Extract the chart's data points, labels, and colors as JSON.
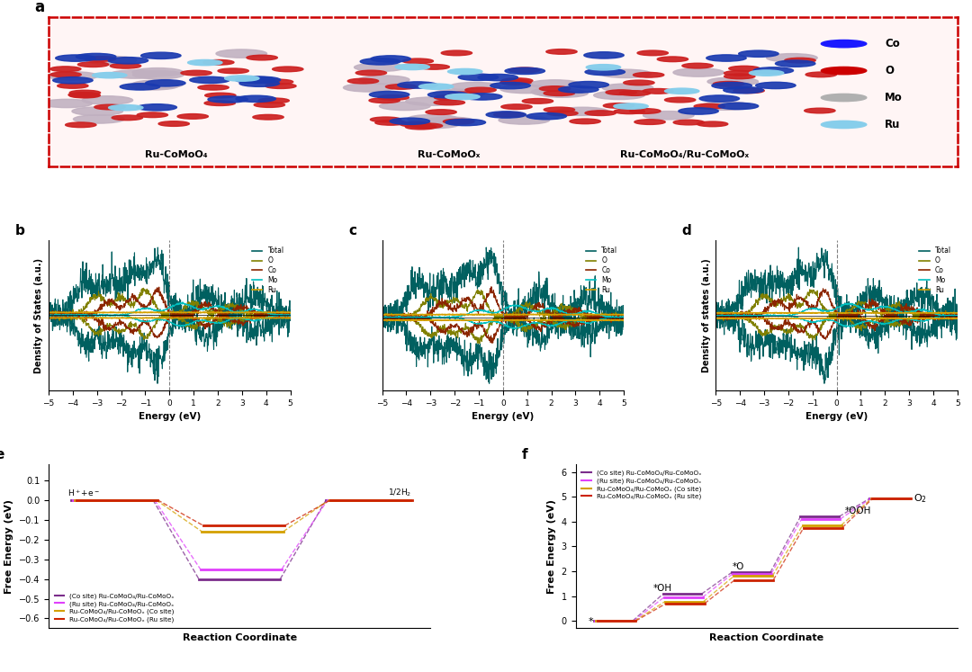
{
  "panel_a_bg": "#fff5f5",
  "panel_a_border": "#cc0000",
  "structure_labels": [
    "Ru-CoMoO₄",
    "Ru-CoMoOₓ",
    "Ru-CoMoO₄/Ru-CoMoOₓ"
  ],
  "legend_items": [
    {
      "label": "Co",
      "color": "#1a1aff"
    },
    {
      "label": "O",
      "color": "#cc0000"
    },
    {
      "label": "Mo",
      "color": "#b0b0b0"
    },
    {
      "label": "Ru",
      "color": "#87ceeb"
    }
  ],
  "dos_colors": {
    "Total": "#006060",
    "O": "#808000",
    "Co": "#8b2500",
    "Mo": "#00bfbf",
    "Ru": "#d4a000"
  },
  "dos_legend_order": [
    "Total",
    "O",
    "Co",
    "Mo",
    "Ru"
  ],
  "panel_e_colors": [
    "#7b2d8b",
    "#e040fb",
    "#d4a000",
    "#cc2200"
  ],
  "panel_e_labels": [
    "(Co site) Ru-CoMoO₄/Ru-CoMoOₓ",
    "(Ru site) Ru-CoMoO₄/Ru-CoMoOₓ",
    "Ru-CoMoO₄/Ru-CoMoOₓ (Co site)",
    "Ru-CoMoO₄/Ru-CoMoOₓ (Ru site)"
  ],
  "panel_e_minima": [
    -0.4,
    -0.35,
    -0.16,
    -0.13
  ],
  "panel_f_colors": [
    "#7b2d8b",
    "#e040fb",
    "#d4a000",
    "#cc2200"
  ],
  "panel_f_labels": [
    "(Co site) Ru-CoMoO₄/Ru-CoMoOₓ",
    "(Ru site) Ru-CoMoO₄/Ru-CoMoOₓ",
    "Ru-CoMoO₄/Ru-CoMoOₓ (Co site)",
    "Ru-CoMoO₄/Ru-CoMoOₓ (Ru site)"
  ],
  "panel_f_oh": [
    1.08,
    0.95,
    0.78,
    0.7
  ],
  "panel_f_o": [
    1.95,
    1.9,
    1.8,
    1.65
  ],
  "panel_f_ooh": [
    4.2,
    4.1,
    3.85,
    3.75
  ],
  "panel_f_o2": 4.92,
  "background_color": "#ffffff"
}
